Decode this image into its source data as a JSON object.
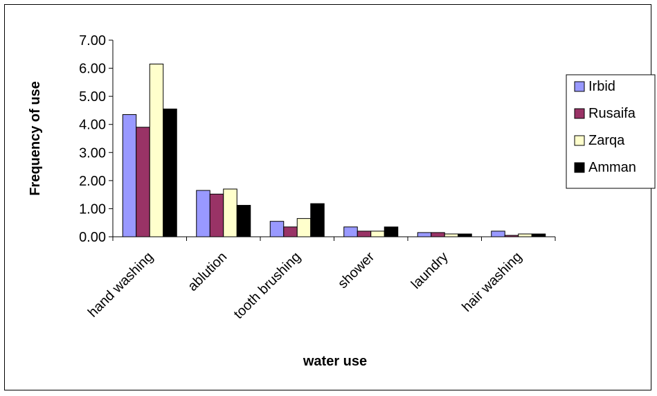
{
  "chart_data": {
    "type": "bar",
    "xlabel": "water use",
    "ylabel": "Frequency of use",
    "ylim": [
      0,
      7
    ],
    "yticks": [
      "0.00",
      "1.00",
      "2.00",
      "3.00",
      "4.00",
      "5.00",
      "6.00",
      "7.00"
    ],
    "grid": false,
    "legend_position": "right",
    "categories": [
      "hand washing",
      "ablution",
      "tooth brushing",
      "shower",
      "laundry",
      "hair washing"
    ],
    "series": [
      {
        "name": "Irbid",
        "color": "#9999ff",
        "values": [
          4.35,
          1.65,
          0.55,
          0.35,
          0.15,
          0.2
        ]
      },
      {
        "name": "Rusaifa",
        "color": "#993366",
        "values": [
          3.9,
          1.52,
          0.35,
          0.2,
          0.15,
          0.05
        ]
      },
      {
        "name": "Zarqa",
        "color": "#ffffcc",
        "values": [
          6.15,
          1.7,
          0.65,
          0.2,
          0.1,
          0.1
        ]
      },
      {
        "name": "Amman",
        "color": "#000000",
        "values": [
          4.55,
          1.12,
          1.18,
          0.35,
          0.1,
          0.1
        ]
      }
    ]
  }
}
